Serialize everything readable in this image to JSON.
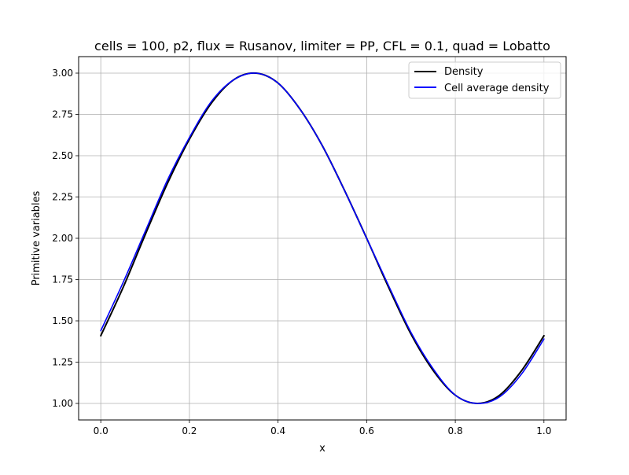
{
  "chart_data": {
    "type": "line",
    "title": "cells = 100, p2, flux = Rusanov, limiter = PP, CFL = 0.1, quad = Lobatto",
    "xlabel": "x",
    "ylabel": "Primitive variables",
    "xlim": [
      -0.05,
      1.05
    ],
    "ylim": [
      0.9,
      3.1
    ],
    "x_ticks": [
      0.0,
      0.2,
      0.4,
      0.6,
      0.8,
      1.0
    ],
    "x_tick_labels": [
      "0.0",
      "0.2",
      "0.4",
      "0.6",
      "0.8",
      "1.0"
    ],
    "y_ticks": [
      1.0,
      1.25,
      1.5,
      1.75,
      2.0,
      2.25,
      2.5,
      2.75,
      3.0
    ],
    "y_tick_labels": [
      "1.00",
      "1.25",
      "1.50",
      "1.75",
      "2.00",
      "2.25",
      "2.50",
      "2.75",
      "3.00"
    ],
    "grid": true,
    "legend_position": "upper right",
    "x": [
      0.0,
      0.05,
      0.1,
      0.15,
      0.2,
      0.25,
      0.3,
      0.35,
      0.4,
      0.45,
      0.5,
      0.55,
      0.6,
      0.65,
      0.7,
      0.75,
      0.8,
      0.85,
      0.9,
      0.95,
      1.0
    ],
    "series": [
      {
        "name": "Density",
        "color": "#000000",
        "values": [
          1.41,
          1.7,
          2.02,
          2.33,
          2.6,
          2.82,
          2.96,
          3.0,
          2.94,
          2.78,
          2.56,
          2.29,
          2.0,
          1.7,
          1.42,
          1.2,
          1.05,
          1.0,
          1.05,
          1.2,
          1.41
        ]
      },
      {
        "name": "Cell average density",
        "color": "#0000ff",
        "values": [
          1.44,
          1.73,
          2.04,
          2.35,
          2.61,
          2.83,
          2.96,
          3.0,
          2.94,
          2.78,
          2.56,
          2.29,
          2.0,
          1.71,
          1.43,
          1.21,
          1.05,
          1.0,
          1.04,
          1.18,
          1.39
        ]
      }
    ]
  }
}
